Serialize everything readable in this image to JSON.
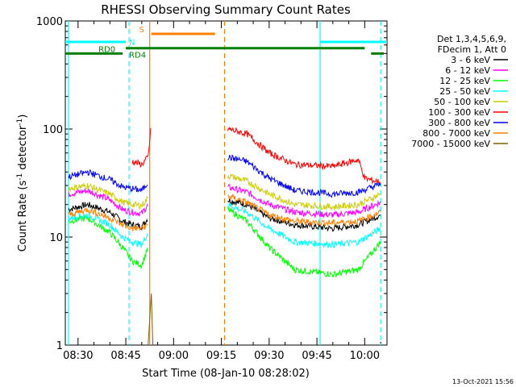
{
  "chart_data": {
    "type": "line",
    "title": "RHESSI Observing Summary Count Rates",
    "xlabel": "Start Time (08-Jan-10 08:28:02)",
    "ylabel_prefix": "Count Rate (s",
    "ylabel_sup1": "-1",
    "ylabel_mid": " detector",
    "ylabel_sup2": "-1",
    "ylabel_suffix": ")",
    "y_scale": "log",
    "ylim": [
      1,
      1000
    ],
    "xlim": [
      "08:26:00",
      "10:07:00"
    ],
    "x_ticks": [
      "08:30",
      "08:45",
      "09:00",
      "09:15",
      "09:30",
      "09:45",
      "10:00"
    ],
    "y_ticks": [
      "1",
      "10",
      "100",
      "1000"
    ],
    "legend": {
      "position": "right",
      "header": [
        "Det 1,3,4,5,6,9,",
        "FDecim 1, Att 0"
      ],
      "entries": [
        {
          "label": "3 - 6 keV",
          "color": "#000000"
        },
        {
          "label": "6 - 12 keV",
          "color": "#ff00ff"
        },
        {
          "label": "12 - 25 keV",
          "color": "#00ff00"
        },
        {
          "label": "25 - 50 keV",
          "color": "#00ffff"
        },
        {
          "label": "50 - 100 keV",
          "color": "#cccc00"
        },
        {
          "label": "100 - 300 keV",
          "color": "#ff0000"
        },
        {
          "label": "300 - 800 keV",
          "color": "#0000ff"
        },
        {
          "label": "800 - 7000 keV",
          "color": "#ff8000"
        },
        {
          "label": "7000 - 15000 keV",
          "color": "#806000"
        }
      ]
    },
    "flags": [
      {
        "label": "N",
        "color": "#00ffff",
        "segments": [
          [
            "08:26:00",
            "08:45:00"
          ],
          [
            "09:46:00",
            "10:07:00"
          ]
        ],
        "level": 640
      },
      {
        "label": "S",
        "color": "#ff8000",
        "segments": [
          [
            "08:53:00",
            "09:13:00"
          ]
        ],
        "level": 760
      },
      {
        "label": "RD0",
        "color": "#008000",
        "segments": [
          [
            "08:26:00",
            "08:44:00"
          ],
          [
            "10:02:00",
            "10:06:00"
          ]
        ],
        "level": 500
      },
      {
        "label": "RD4",
        "color": "#008000",
        "segments": [
          [
            "08:45:00",
            "10:00:00"
          ]
        ],
        "level": 560
      }
    ],
    "vlines": [
      {
        "time": "08:27:00",
        "color": "#00ffff",
        "style": "solid"
      },
      {
        "time": "08:46:00",
        "color": "#00ffff",
        "style": "dashed"
      },
      {
        "time": "08:52:30",
        "color": "#ff8000",
        "style": "solid"
      },
      {
        "time": "09:16:00",
        "color": "#ff8000",
        "style": "dashed"
      },
      {
        "time": "09:46:00",
        "color": "#00ffff",
        "style": "solid"
      },
      {
        "time": "10:05:00",
        "color": "#00ffff",
        "style": "dashed"
      }
    ],
    "data_gap": [
      "08:53:00",
      "09:17:00"
    ],
    "series": [
      {
        "color": "#000000",
        "pts": [
          [
            "08:27",
            18
          ],
          [
            "08:33",
            20
          ],
          [
            "08:40",
            17
          ],
          [
            "08:44",
            14
          ],
          [
            "08:47",
            13
          ],
          [
            "08:50",
            12.5
          ],
          [
            "08:52",
            15
          ],
          [
            "09:17",
            22
          ],
          [
            "09:23",
            20
          ],
          [
            "09:30",
            15
          ],
          [
            "09:38",
            13
          ],
          [
            "09:50",
            12
          ],
          [
            "09:58",
            13
          ],
          [
            "10:05",
            16
          ]
        ]
      },
      {
        "color": "#ff00ff",
        "pts": [
          [
            "08:27",
            25
          ],
          [
            "08:33",
            27
          ],
          [
            "08:40",
            22
          ],
          [
            "08:44",
            18
          ],
          [
            "08:47",
            17
          ],
          [
            "08:50",
            16.5
          ],
          [
            "08:52",
            20
          ],
          [
            "09:17",
            29
          ],
          [
            "09:23",
            26
          ],
          [
            "09:30",
            20
          ],
          [
            "09:38",
            17
          ],
          [
            "09:50",
            16
          ],
          [
            "09:58",
            17
          ],
          [
            "10:05",
            21
          ]
        ]
      },
      {
        "color": "#00ff00",
        "pts": [
          [
            "08:27",
            14
          ],
          [
            "08:33",
            15
          ],
          [
            "08:40",
            11
          ],
          [
            "08:44",
            8
          ],
          [
            "08:47",
            6
          ],
          [
            "08:50",
            5.5
          ],
          [
            "08:52",
            8
          ],
          [
            "09:17",
            18
          ],
          [
            "09:23",
            14
          ],
          [
            "09:30",
            8
          ],
          [
            "09:38",
            5
          ],
          [
            "09:50",
            4.5
          ],
          [
            "09:58",
            5
          ],
          [
            "10:05",
            9
          ]
        ]
      },
      {
        "color": "#00ffff",
        "pts": [
          [
            "08:27",
            15
          ],
          [
            "08:33",
            16
          ],
          [
            "08:40",
            13
          ],
          [
            "08:44",
            10
          ],
          [
            "08:47",
            9
          ],
          [
            "08:50",
            8.5
          ],
          [
            "08:52",
            11
          ],
          [
            "09:17",
            20
          ],
          [
            "09:23",
            17
          ],
          [
            "09:30",
            12
          ],
          [
            "09:38",
            9
          ],
          [
            "09:50",
            8.5
          ],
          [
            "09:58",
            9
          ],
          [
            "10:05",
            12
          ]
        ]
      },
      {
        "color": "#cccc00",
        "pts": [
          [
            "08:27",
            28
          ],
          [
            "08:33",
            30
          ],
          [
            "08:40",
            25
          ],
          [
            "08:44",
            21
          ],
          [
            "08:47",
            20
          ],
          [
            "08:50",
            19.5
          ],
          [
            "08:52",
            23
          ],
          [
            "09:17",
            37
          ],
          [
            "09:23",
            33
          ],
          [
            "09:30",
            25
          ],
          [
            "09:38",
            20
          ],
          [
            "09:50",
            19
          ],
          [
            "09:58",
            20
          ],
          [
            "10:05",
            25
          ]
        ]
      },
      {
        "color": "#ff0000",
        "pts": [
          [
            "08:47",
            50
          ],
          [
            "08:50",
            47
          ],
          [
            "08:52",
            55
          ],
          [
            "08:53",
            110
          ],
          [
            "09:17",
            100
          ],
          [
            "09:23",
            90
          ],
          [
            "09:30",
            60
          ],
          [
            "09:38",
            47
          ],
          [
            "09:50",
            45
          ],
          [
            "09:58",
            52
          ],
          [
            "10:00",
            35
          ],
          [
            "10:05",
            32
          ]
        ]
      },
      {
        "color": "#0000ff",
        "pts": [
          [
            "08:27",
            36
          ],
          [
            "08:33",
            40
          ],
          [
            "08:40",
            34
          ],
          [
            "08:44",
            29
          ],
          [
            "08:47",
            28
          ],
          [
            "08:50",
            27
          ],
          [
            "08:52",
            32
          ],
          [
            "09:17",
            55
          ],
          [
            "09:23",
            50
          ],
          [
            "09:30",
            35
          ],
          [
            "09:38",
            27
          ],
          [
            "09:50",
            25
          ],
          [
            "09:58",
            26
          ],
          [
            "10:05",
            31
          ]
        ]
      },
      {
        "color": "#ff8000",
        "pts": [
          [
            "08:27",
            16
          ],
          [
            "08:33",
            18
          ],
          [
            "08:40",
            15
          ],
          [
            "08:44",
            13
          ],
          [
            "08:47",
            12
          ],
          [
            "08:50",
            12
          ],
          [
            "08:52",
            13
          ],
          [
            "09:17",
            24
          ],
          [
            "09:23",
            21
          ],
          [
            "09:30",
            16
          ],
          [
            "09:38",
            14
          ],
          [
            "09:50",
            13.5
          ],
          [
            "09:58",
            14
          ],
          [
            "10:05",
            17
          ]
        ]
      },
      {
        "color": "#806000",
        "pts": [
          [
            "08:52",
            1
          ],
          [
            "08:53",
            3
          ],
          [
            "08:53:30",
            1
          ]
        ]
      }
    ]
  },
  "footer": {
    "timestamp": "13-Oct-2021 15:56"
  }
}
